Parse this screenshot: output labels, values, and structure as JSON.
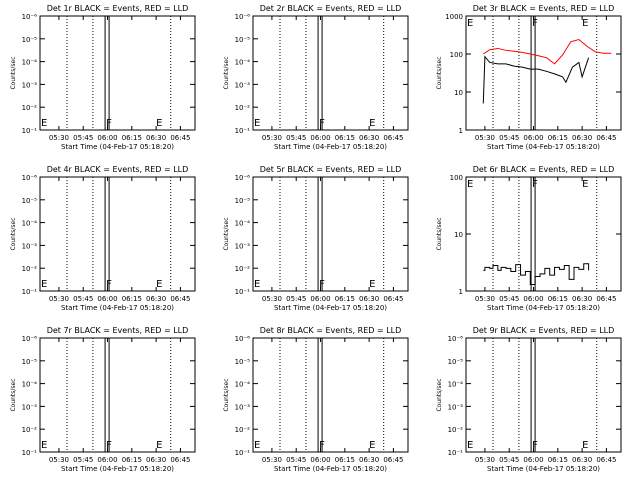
{
  "chart_data": [
    {
      "type": "line",
      "title": "Det 1r  BLACK = Events, RED = LLD",
      "ylabel": "Counts/sec",
      "xlabel": "Start Time (04-Feb-17 05:18:20)",
      "x_tick_labels": [
        "05:30",
        "05:45",
        "06:00",
        "06:15",
        "06:30",
        "06:45"
      ],
      "y_scale": "log",
      "ylim": [
        1e-06,
        1e-10
      ],
      "y_tick_labels": [
        "10⁻¹",
        "10⁻²",
        "10⁻³",
        "10⁻⁴",
        "10⁻⁵",
        "10⁻⁶"
      ],
      "markers": [
        "F",
        "E"
      ],
      "series": []
    },
    {
      "type": "line",
      "title": "Det 2r  BLACK = Events, RED = LLD",
      "ylabel": "Counts/sec",
      "xlabel": "Start Time (04-Feb-17 05:18:20)",
      "x_tick_labels": [
        "05:30",
        "05:45",
        "06:00",
        "06:15",
        "06:30",
        "06:45"
      ],
      "y_scale": "log",
      "y_tick_labels": [
        "10⁻¹",
        "10⁻²",
        "10⁻³",
        "10⁻⁴",
        "10⁻⁵",
        "10⁻⁶"
      ],
      "markers": [
        "F",
        "E"
      ],
      "series": []
    },
    {
      "type": "line",
      "title": "Det 3r  BLACK = Events, RED = LLD",
      "ylabel": "Counts/sec",
      "xlabel": "Start Time (04-Feb-17 05:18:20)",
      "x_tick_labels": [
        "05:30",
        "05:45",
        "06:00",
        "06:15",
        "06:30",
        "06:45"
      ],
      "y_scale": "log",
      "ylim": [
        1,
        1000
      ],
      "y_tick_labels": [
        "1",
        "10",
        "100",
        "1000"
      ],
      "markers": [
        "F",
        "E"
      ],
      "series": [
        {
          "color": "#ff0000",
          "x": [
            "05:29",
            "05:33",
            "05:38",
            "05:43",
            "05:48",
            "05:53",
            "05:58",
            "06:03",
            "06:08",
            "06:13",
            "06:18",
            "06:23",
            "06:28",
            "06:33",
            "06:38",
            "06:43",
            "06:48"
          ],
          "y": [
            100,
            130,
            140,
            125,
            118,
            110,
            100,
            90,
            80,
            55,
            95,
            210,
            240,
            160,
            115,
            105,
            105
          ]
        },
        {
          "color": "#000000",
          "x": [
            "05:29",
            "05:30",
            "05:33",
            "05:38",
            "05:43",
            "05:48",
            "05:53",
            "05:58",
            "06:03",
            "06:08",
            "06:13",
            "06:18",
            "06:20",
            "06:24",
            "06:28",
            "06:30",
            "06:34"
          ],
          "y": [
            5,
            85,
            60,
            55,
            55,
            48,
            45,
            40,
            40,
            35,
            30,
            25,
            18,
            45,
            60,
            25,
            80
          ]
        }
      ]
    },
    {
      "type": "line",
      "title": "Det 4r  BLACK = Events, RED = LLD",
      "ylabel": "Counts/sec",
      "xlabel": "Start Time (04-Feb-17 05:18:20)",
      "x_tick_labels": [
        "05:30",
        "05:45",
        "06:00",
        "06:15",
        "06:30",
        "06:45"
      ],
      "y_scale": "log",
      "y_tick_labels": [
        "10⁻¹",
        "10⁻²",
        "10⁻³",
        "10⁻⁴",
        "10⁻⁵",
        "10⁻⁶"
      ],
      "markers": [
        "F",
        "E"
      ],
      "series": []
    },
    {
      "type": "line",
      "title": "Det 5r  BLACK = Events, RED = LLD",
      "ylabel": "Counts/sec",
      "xlabel": "Start Time (04-Feb-17 05:18:20)",
      "x_tick_labels": [
        "05:30",
        "05:45",
        "06:00",
        "06:15",
        "06:30",
        "06:45"
      ],
      "y_scale": "log",
      "y_tick_labels": [
        "10⁻¹",
        "10⁻²",
        "10⁻³",
        "10⁻⁴",
        "10⁻⁵",
        "10⁻⁶"
      ],
      "markers": [
        "F",
        "E"
      ],
      "series": []
    },
    {
      "type": "line",
      "title": "Det 6r  BLACK = Events, RED = LLD",
      "ylabel": "Counts/sec",
      "xlabel": "Start Time (04-Feb-17 05:18:20)",
      "x_tick_labels": [
        "05:30",
        "05:45",
        "06:00",
        "06:15",
        "06:30",
        "06:45"
      ],
      "y_scale": "log",
      "ylim": [
        1,
        100
      ],
      "y_tick_labels": [
        "1",
        "10",
        "100"
      ],
      "markers": [
        "F",
        "E"
      ],
      "series": [
        {
          "color": "#000000",
          "x": [
            "05:29",
            "05:30",
            "05:33",
            "05:35",
            "05:38",
            "05:40",
            "05:43",
            "05:46",
            "05:49",
            "05:52",
            "05:55",
            "05:58",
            "06:01",
            "06:04",
            "06:07",
            "06:10",
            "06:13",
            "06:16",
            "06:19",
            "06:22",
            "06:25",
            "06:28",
            "06:31",
            "06:34"
          ],
          "y": [
            2.3,
            2.6,
            2.5,
            2.8,
            2.3,
            2.6,
            2.5,
            2.2,
            2.9,
            1.9,
            2.2,
            1.3,
            1.8,
            2.0,
            2.5,
            1.9,
            2.6,
            2.4,
            2.8,
            1.6,
            2.6,
            2.4,
            3.0,
            2.3
          ]
        }
      ]
    },
    {
      "type": "line",
      "title": "Det 7r  BLACK = Events, RED = LLD",
      "ylabel": "Counts/sec",
      "xlabel": "Start Time (04-Feb-17 05:18:20)",
      "x_tick_labels": [
        "05:30",
        "05:45",
        "06:00",
        "06:15",
        "06:30",
        "06:45"
      ],
      "y_scale": "log",
      "y_tick_labels": [
        "10⁻¹",
        "10⁻²",
        "10⁻³",
        "10⁻⁴",
        "10⁻⁵",
        "10⁻⁶"
      ],
      "markers": [
        "F",
        "E"
      ],
      "series": []
    },
    {
      "type": "line",
      "title": "Det 8r  BLACK = Events, RED = LLD",
      "ylabel": "Counts/sec",
      "xlabel": "Start Time (04-Feb-17 05:18:20)",
      "x_tick_labels": [
        "05:30",
        "05:45",
        "06:00",
        "06:15",
        "06:30",
        "06:45"
      ],
      "y_scale": "log",
      "y_tick_labels": [
        "10⁻¹",
        "10⁻²",
        "10⁻³",
        "10⁻⁴",
        "10⁻⁵",
        "10⁻⁶"
      ],
      "markers": [
        "F",
        "E"
      ],
      "series": []
    },
    {
      "type": "line",
      "title": "Det 9r  BLACK = Events, RED = LLD",
      "ylabel": "Counts/sec",
      "xlabel": "Start Time (04-Feb-17 05:18:20)",
      "x_tick_labels": [
        "05:30",
        "05:45",
        "06:00",
        "06:15",
        "06:30",
        "06:45"
      ],
      "y_scale": "log",
      "y_tick_labels": [
        "10⁻¹",
        "10⁻²",
        "10⁻³",
        "10⁻⁴",
        "10⁻⁵",
        "10⁻⁶"
      ],
      "markers": [
        "F",
        "E"
      ],
      "series": []
    }
  ]
}
